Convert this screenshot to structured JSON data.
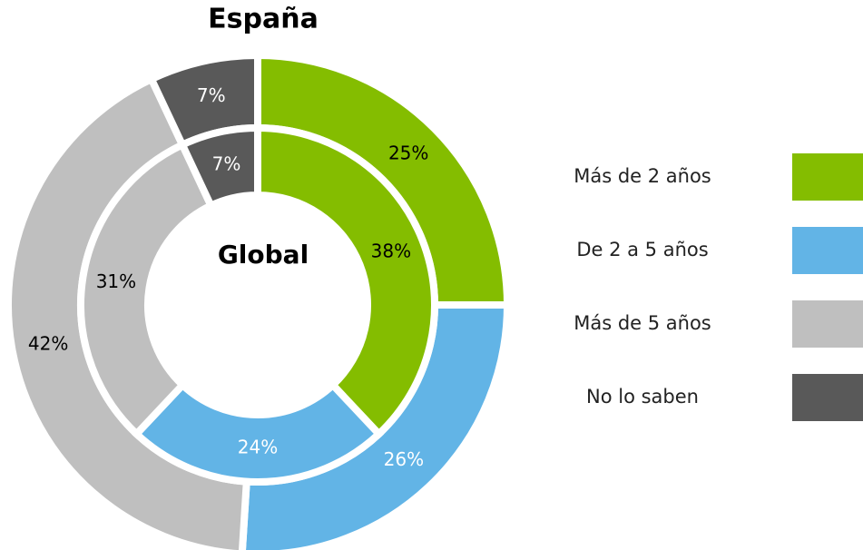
{
  "chart_data": {
    "type": "donut",
    "categories": [
      "Más de 2 años",
      "De 2 a 5 años",
      "Más de 5 años",
      "No lo saben"
    ],
    "colors": [
      "#84bd00",
      "#62b4e6",
      "#bfbfbf",
      "#595959"
    ],
    "label_colors": [
      "#000000",
      "#ffffff",
      "#000000",
      "#ffffff"
    ],
    "series": [
      {
        "name": "España",
        "values": [
          25,
          26,
          42,
          7
        ],
        "value_labels": [
          "25%",
          "26%",
          "42%",
          "7%"
        ]
      },
      {
        "name": "Global",
        "values": [
          38,
          24,
          31,
          7
        ],
        "value_labels": [
          "38%",
          "24%",
          "31%",
          "7%"
        ]
      }
    ]
  }
}
